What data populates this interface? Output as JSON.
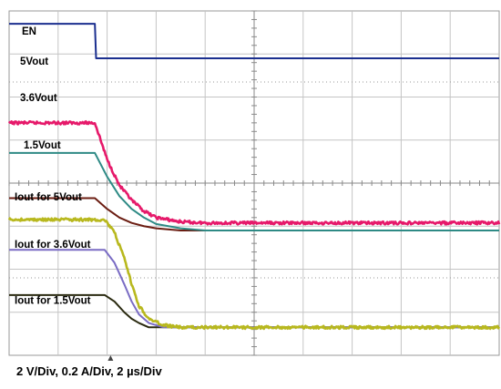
{
  "caption": "2 V/Div, 0.2 A/Div, 2 µs/Div",
  "chart_data": {
    "type": "line",
    "title": "",
    "xlabel": "",
    "ylabel": "",
    "x_unit": "µs",
    "divisions": {
      "x": 10,
      "y": 8
    },
    "scales": {
      "voltage_per_div": 2,
      "current_per_div": 0.2,
      "time_per_div": 2
    },
    "xlim": [
      0,
      20
    ],
    "series": [
      {
        "name": "EN",
        "group": "voltage",
        "color": "#1b2f8f",
        "x": [
          0,
          3.5,
          3.55,
          20
        ],
        "y": [
          9.6,
          9.6,
          8.0,
          8.0
        ]
      },
      {
        "name": "5Vout",
        "group": "voltage",
        "color": "#e6196a",
        "noise": true,
        "x": [
          0,
          3.5,
          4.0,
          4.5,
          5.0,
          5.5,
          6.0,
          7.0,
          8.0,
          20
        ],
        "y": [
          5.0,
          5.0,
          3.3,
          2.1,
          1.4,
          0.9,
          0.6,
          0.4,
          0.35,
          0.35
        ]
      },
      {
        "name": "3.6Vout",
        "group": "voltage",
        "color": "#2e8a85",
        "x": [
          0,
          3.5,
          4.0,
          4.5,
          5.0,
          5.5,
          6.0,
          7.0,
          8.0,
          20
        ],
        "y": [
          3.6,
          3.6,
          2.5,
          1.6,
          1.0,
          0.6,
          0.3,
          0.1,
          0.0,
          0.0
        ]
      },
      {
        "name": "1.5Vout",
        "group": "voltage",
        "color": "#6b1d12",
        "x": [
          0,
          3.5,
          4.0,
          4.5,
          5.0,
          5.5,
          6.0,
          7.0,
          8.0,
          20
        ],
        "y": [
          1.5,
          1.5,
          1.0,
          0.6,
          0.35,
          0.2,
          0.1,
          0.0,
          0.0,
          0.0
        ]
      },
      {
        "name": "Iout for 5Vout",
        "group": "current",
        "color": "#b8b81e",
        "noise": true,
        "x": [
          0,
          3.9,
          4.3,
          4.7,
          5.0,
          5.3,
          5.7,
          6.3,
          7.0,
          20
        ],
        "y": [
          0.5,
          0.5,
          0.44,
          0.32,
          0.2,
          0.1,
          0.04,
          0.01,
          0.0,
          0.0
        ]
      },
      {
        "name": "Iout for 3.6Vout",
        "group": "current",
        "color": "#7a6cc4",
        "x": [
          0,
          3.9,
          4.3,
          4.7,
          5.0,
          5.3,
          5.7,
          6.3,
          7.0,
          20
        ],
        "y": [
          0.36,
          0.36,
          0.3,
          0.2,
          0.12,
          0.06,
          0.02,
          0.0,
          0.0,
          0.0
        ]
      },
      {
        "name": "Iout for 1.5Vout",
        "group": "current",
        "color": "#2a2a10",
        "x": [
          0,
          3.9,
          4.3,
          4.7,
          5.0,
          5.3,
          5.7,
          6.3,
          7.0,
          20
        ],
        "y": [
          0.15,
          0.15,
          0.12,
          0.07,
          0.04,
          0.02,
          0.0,
          0.0,
          0.0,
          0.0
        ]
      }
    ]
  }
}
